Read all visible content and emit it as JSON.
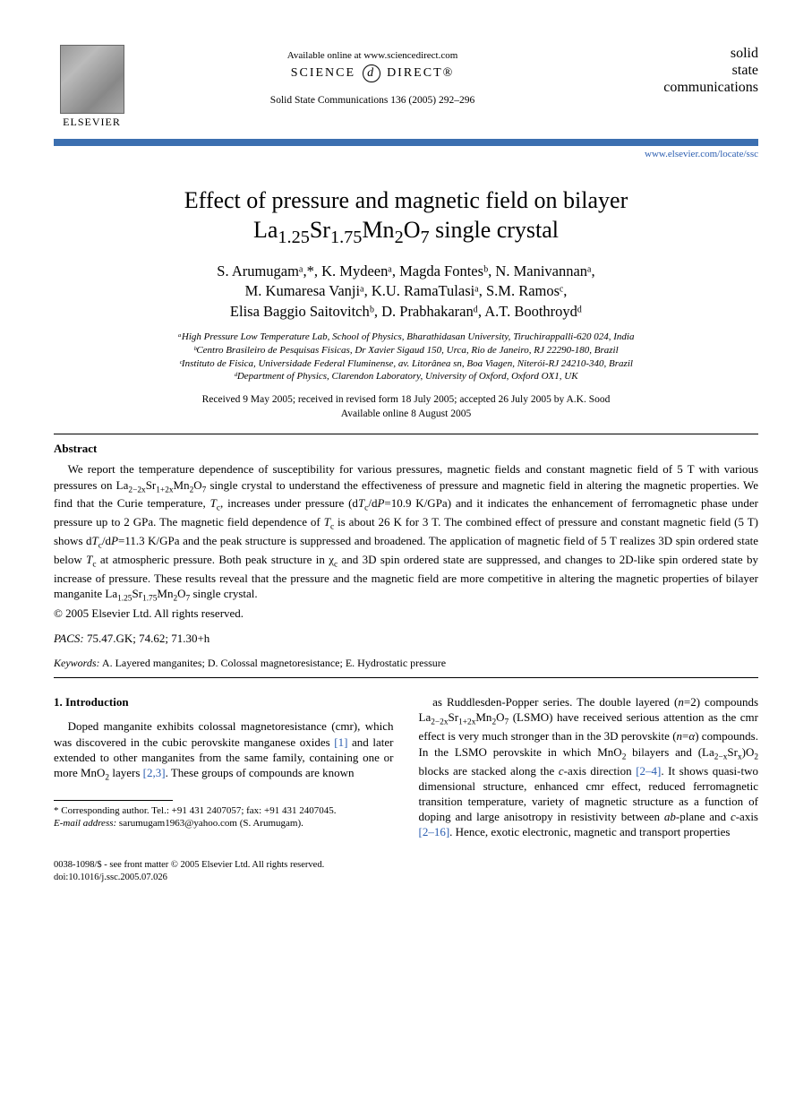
{
  "header": {
    "elsevier_label": "ELSEVIER",
    "avail_online": "Available online at www.sciencedirect.com",
    "sciencedirect_left": "SCIENCE",
    "sciencedirect_right": "DIRECT®",
    "journal_ref": "Solid State Communications 136 (2005) 292–296",
    "journal_name_l1": "solid",
    "journal_name_l2": "state",
    "journal_name_l3": "communications",
    "journal_link": "www.elsevier.com/locate/ssc"
  },
  "title": {
    "line1": "Effect of pressure and magnetic field on bilayer",
    "compound_pre": "La",
    "compound_s1": "1.25",
    "compound_mid1": "Sr",
    "compound_s2": "1.75",
    "compound_mid2": "Mn",
    "compound_s3": "2",
    "compound_mid3": "O",
    "compound_s4": "7",
    "line2_tail": " single crystal"
  },
  "authors": {
    "l1": "S. Arumugamᵃ,*, K. Mydeenᵃ, Magda Fontesᵇ, N. Manivannanᵃ,",
    "l2": "M. Kumaresa Vanjiᵃ, K.U. RamaTulasiᵃ, S.M. Ramosᶜ,",
    "l3": "Elisa Baggio Saitovitchᵇ, D. Prabhakaranᵈ, A.T. Boothroydᵈ"
  },
  "affils": {
    "a": "ᵃHigh Pressure Low Temperature Lab, School of Physics, Bharathidasan University, Tiruchirappalli-620 024, India",
    "b": "ᵇCentro Brasileiro de Pesquisas Fisicas, Dr Xavier Sigaud 150, Urca, Rio de Janeiro, RJ 22290-180, Brazil",
    "c": "ᶜInstituto de Fisica, Universidade Federal Fluminense, av. Litorânea sn, Boa Viagen, Niterói-RJ 24210-340, Brazil",
    "d": "ᵈDepartment of Physics, Clarendon Laboratory, University of Oxford, Oxford OX1, UK"
  },
  "dates": {
    "received": "Received 9 May 2005; received in revised form 18 July 2005; accepted 26 July 2005 by A.K. Sood",
    "online": "Available online 8 August 2005"
  },
  "abstract": {
    "head": "Abstract",
    "body_html": "We report the temperature dependence of susceptibility for various pressures, magnetic fields and constant magnetic field of 5 T with various pressures on La<sub>2−2x</sub>Sr<sub>1+2x</sub>Mn<sub>2</sub>O<sub>7</sub> single crystal to understand the effectiveness of pressure and magnetic field in altering the magnetic properties. We find that the Curie temperature, <i>T</i><sub>c</sub>, increases under pressure (d<i>T</i><sub>c</sub>/d<i>P</i>=10.9 K/GPa) and it indicates the enhancement of ferromagnetic phase under pressure up to 2 GPa. The magnetic field dependence of <i>T</i><sub>c</sub> is about 26 K for 3 T. The combined effect of pressure and constant magnetic field (5 T) shows d<i>T</i><sub>c</sub>/d<i>P</i>=11.3 K/GPa and the peak structure is suppressed and broadened. The application of magnetic field of 5 T realizes 3D spin ordered state below <i>T</i><sub>c</sub> at atmospheric pressure. Both peak structure in χ<sub>c</sub> and 3D spin ordered state are suppressed, and changes to 2D-like spin ordered state by increase of pressure. These results reveal that the pressure and the magnetic field are more competitive in altering the magnetic properties of bilayer manganite La<sub>1.25</sub>Sr<sub>1.75</sub>Mn<sub>2</sub>O<sub>7</sub> single crystal.",
    "copyright": "© 2005 Elsevier Ltd. All rights reserved."
  },
  "pacs": {
    "label": "PACS:",
    "value": " 75.47.GK; 74.62; 71.30+h"
  },
  "keywords": {
    "label": "Keywords:",
    "value": " A. Layered manganites; D. Colossal magnetoresistance; E. Hydrostatic pressure"
  },
  "intro": {
    "head": "1. Introduction",
    "col1_html": "Doped manganite exhibits colossal magnetoresistance (cmr), which was discovered in the cubic perovskite manganese oxides <a class='ref' href='#'>[1]</a> and later extended to other manganites from the same family, containing one or more MnO<sub>2</sub> layers <a class='ref' href='#'>[2,3]</a>. These groups of compounds are known",
    "col2_html": "as Ruddlesden-Popper series. The double layered (<i>n</i>=2) compounds La<sub>2−2x</sub>Sr<sub>1+2x</sub>Mn<sub>2</sub>O<sub>7</sub> (LSMO) have received serious attention as the cmr effect is very much stronger than in the 3D perovskite (<i>n</i>=<i>α</i>) compounds. In the LSMO perovskite in which MnO<sub>2</sub> bilayers and (La<sub>2−x</sub>Sr<sub>x</sub>)O<sub>2</sub> blocks are stacked along the <i>c</i>-axis direction <a class='ref' href='#'>[2–4]</a>. It shows quasi-two dimensional structure, enhanced cmr effect, reduced ferromagnetic transition temperature, variety of magnetic structure as a function of doping and large anisotropy in resistivity between <i>ab</i>-plane and <i>c</i>-axis <a class='ref' href='#'>[2–16]</a>. Hence, exotic electronic, magnetic and transport properties"
  },
  "footnote": {
    "corr_label": "* Corresponding author. Tel.: ",
    "corr_val": "+91 431 2407057; fax: +91 431 2407045.",
    "email_label": "E-mail address:",
    "email_val": " sarumugam1963@yahoo.com (S. Arumugam)."
  },
  "bottom": {
    "line1": "0038-1098/$ - see front matter © 2005 Elsevier Ltd. All rights reserved.",
    "line2": "doi:10.1016/j.ssc.2005.07.026"
  },
  "colors": {
    "blue_bar": "#3b6fb0",
    "link": "#2a5db0",
    "text": "#000000",
    "bg": "#ffffff"
  }
}
